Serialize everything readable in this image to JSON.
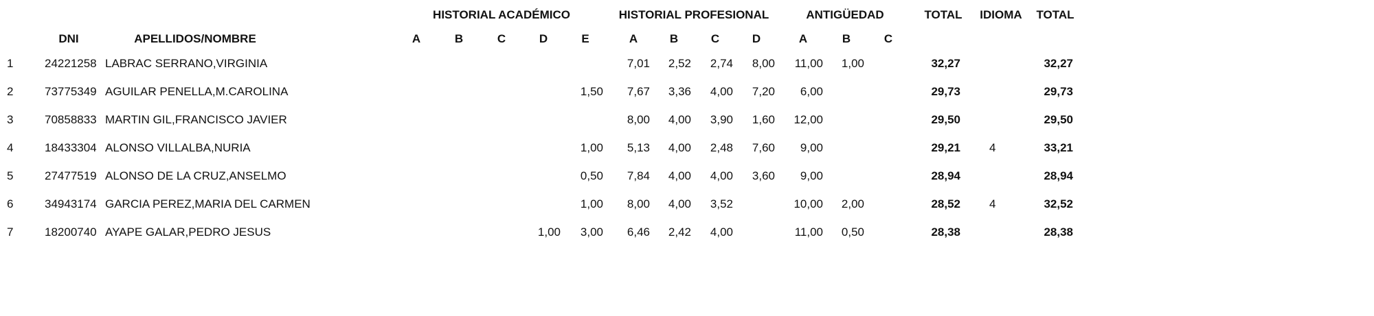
{
  "table": {
    "group_headers": [
      "HISTORIAL ACADÉMICO",
      "HISTORIAL PROFESIONAL",
      "ANTIGÜEDAD",
      "TOTAL",
      "IDIOMA",
      "TOTAL"
    ],
    "column_headers": [
      "DNI",
      "APELLIDOS/NOMBRE",
      "A",
      "B",
      "C",
      "D",
      "E",
      "A",
      "B",
      "C",
      "D",
      "A",
      "B",
      "C"
    ],
    "rows": [
      [
        "1",
        "24221258",
        "LABRAC SERRANO,VIRGINIA",
        null,
        null,
        null,
        null,
        null,
        "7,01",
        "2,52",
        "2,74",
        "8,00",
        "11,00",
        "1,00",
        null,
        "32,27",
        null,
        "32,27"
      ],
      [
        "2",
        "73775349",
        "AGUILAR PENELLA,M.CAROLINA",
        null,
        null,
        null,
        null,
        "1,50",
        "7,67",
        "3,36",
        "4,00",
        "7,20",
        "6,00",
        null,
        null,
        "29,73",
        null,
        "29,73"
      ],
      [
        "3",
        "70858833",
        "MARTIN GIL,FRANCISCO JAVIER",
        null,
        null,
        null,
        null,
        null,
        "8,00",
        "4,00",
        "3,90",
        "1,60",
        "12,00",
        null,
        null,
        "29,50",
        null,
        "29,50"
      ],
      [
        "4",
        "18433304",
        "ALONSO VILLALBA,NURIA",
        null,
        null,
        null,
        null,
        "1,00",
        "5,13",
        "4,00",
        "2,48",
        "7,60",
        "9,00",
        null,
        null,
        "29,21",
        "4",
        "33,21"
      ],
      [
        "5",
        "27477519",
        "ALONSO DE LA CRUZ,ANSELMO",
        null,
        null,
        null,
        null,
        "0,50",
        "7,84",
        "4,00",
        "4,00",
        "3,60",
        "9,00",
        null,
        null,
        "28,94",
        null,
        "28,94"
      ],
      [
        "6",
        "34943174",
        "GARCIA PEREZ,MARIA DEL CARMEN",
        null,
        null,
        null,
        null,
        "1,00",
        "8,00",
        "4,00",
        "3,52",
        null,
        "10,00",
        "2,00",
        null,
        "28,52",
        "4",
        "32,52"
      ],
      [
        "7",
        "18200740",
        "AYAPE GALAR,PEDRO JESUS",
        null,
        null,
        null,
        "1,00",
        "3,00",
        "6,46",
        "2,42",
        "4,00",
        null,
        "11,00",
        "0,50",
        null,
        "28,38",
        null,
        "28,38"
      ]
    ]
  }
}
